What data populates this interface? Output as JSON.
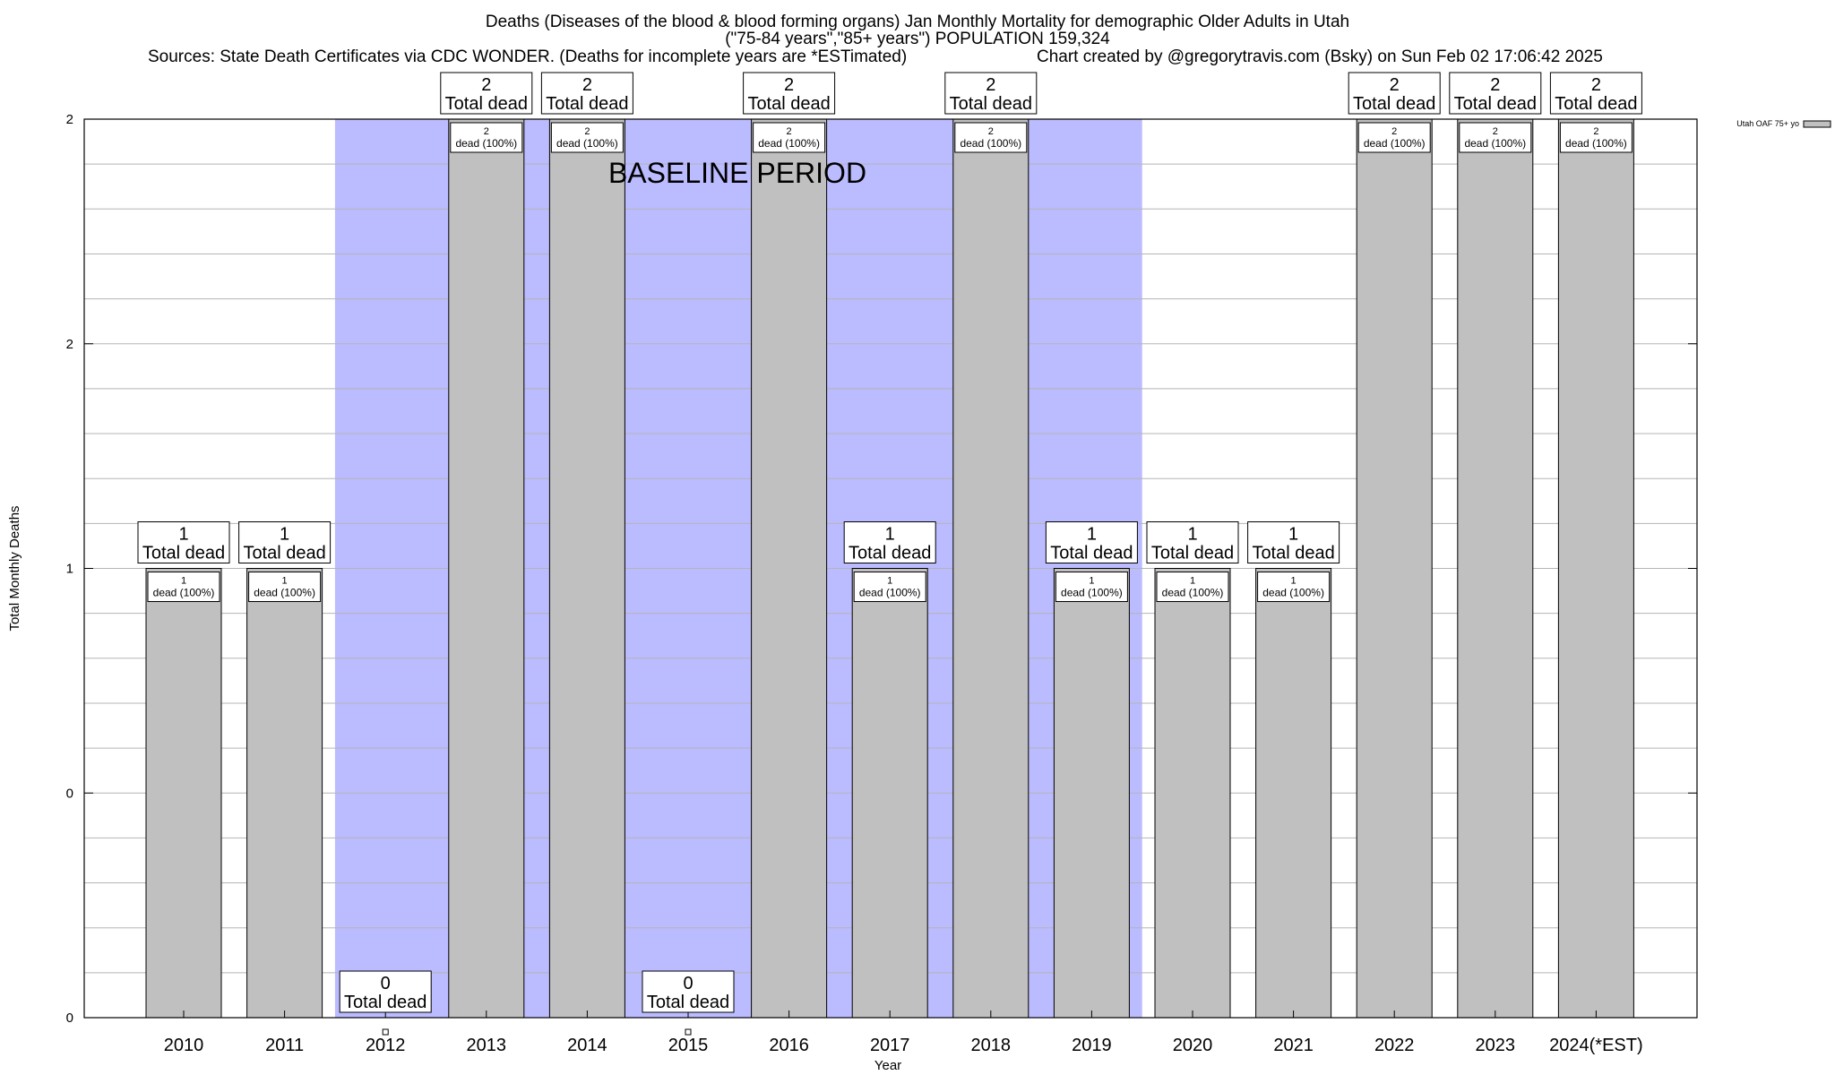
{
  "header": {
    "title": "Deaths (Diseases of the blood & blood forming organs) Jan Monthly Mortality for demographic Older Adults in Utah",
    "subtitle": "(\"75-84 years\",\"85+ years\") POPULATION 159,324",
    "sources": "Sources: State Death Certificates via CDC WONDER. (Deaths for incomplete years are *ESTimated)",
    "credit": "Chart created by @gregorytravis.com (Bsky) on Sun Feb 02 17:06:42 2025"
  },
  "chart_data": {
    "type": "bar",
    "xlabel": "Year",
    "ylabel": "Total Monthly Deaths",
    "ylim": [
      0,
      2
    ],
    "ytick_values": [
      0,
      0.5,
      1,
      1.5,
      2
    ],
    "ytick_labels": [
      "0",
      "0",
      "1",
      "2",
      "2"
    ],
    "grid": true,
    "legend_position": "top-right",
    "categories": [
      "2010",
      "2011",
      "2012",
      "2013",
      "2014",
      "2015",
      "2016",
      "2017",
      "2018",
      "2019",
      "2020",
      "2021",
      "2022",
      "2023",
      "2024(*EST)"
    ],
    "series": [
      {
        "name": "Utah OAF 75+ yo",
        "color": "#c0c0c0",
        "values": [
          1,
          1,
          0,
          2,
          2,
          0,
          2,
          1,
          2,
          1,
          1,
          1,
          2,
          2,
          2
        ]
      }
    ],
    "total_label_suffix": "Total dead",
    "inner_label_suffix": "dead (100%)",
    "baseline_period": {
      "label": "BASELINE PERIOD",
      "start_category": "2012",
      "end_category": "2019",
      "color": "#bbbbff"
    }
  }
}
